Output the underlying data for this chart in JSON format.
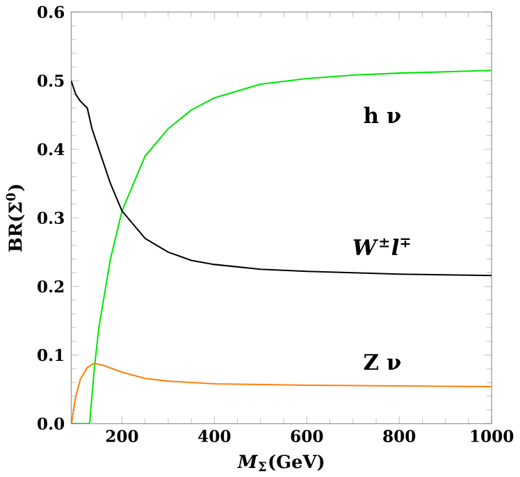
{
  "chart_data": {
    "type": "line",
    "xlabel": "*M*$_{Σ}$(GeV)",
    "ylabel": "BR(Σ$^{0}$)",
    "xlim": [
      90,
      1000
    ],
    "ylim": [
      0,
      0.6
    ],
    "xticks": [
      200,
      400,
      600,
      800,
      1000
    ],
    "yticks": [
      {
        "value": 0,
        "label": "0.0"
      },
      0.1,
      0.2,
      0.3,
      0.4,
      0.5,
      0.6
    ],
    "grid": false,
    "legend": false,
    "marker": "none",
    "line_style": "solid",
    "series": [
      {
        "name": "h ν",
        "color": "#00e600",
        "x": [
          90,
          110,
          125,
          130,
          140,
          150,
          175,
          200,
          250,
          300,
          350,
          400,
          500,
          600,
          700,
          800,
          900,
          1000
        ],
        "values": [
          0,
          0,
          0,
          0.0,
          0.08,
          0.14,
          0.24,
          0.31,
          0.39,
          0.43,
          0.457,
          0.475,
          0.495,
          0.503,
          0.508,
          0.511,
          0.513,
          0.515
        ]
      },
      {
        "name": "*W*$^{±}$*l*$^{∓}$",
        "color": "#000000",
        "x": [
          90,
          100,
          110,
          125,
          135,
          150,
          175,
          200,
          250,
          300,
          350,
          400,
          500,
          600,
          700,
          800,
          900,
          1000
        ],
        "values": [
          0.5,
          0.48,
          0.47,
          0.46,
          0.43,
          0.4,
          0.35,
          0.31,
          0.27,
          0.25,
          0.238,
          0.232,
          0.225,
          0.222,
          0.22,
          0.218,
          0.217,
          0.216
        ]
      },
      {
        "name": "Z ν",
        "color": "#ff7f0e",
        "x": [
          91,
          95,
          100,
          110,
          125,
          140,
          160,
          200,
          250,
          300,
          400,
          500,
          600,
          800,
          1000
        ],
        "values": [
          0,
          0.02,
          0.04,
          0.065,
          0.082,
          0.088,
          0.085,
          0.075,
          0.066,
          0.062,
          0.058,
          0.057,
          0.056,
          0.055,
          0.054
        ]
      }
    ]
  }
}
